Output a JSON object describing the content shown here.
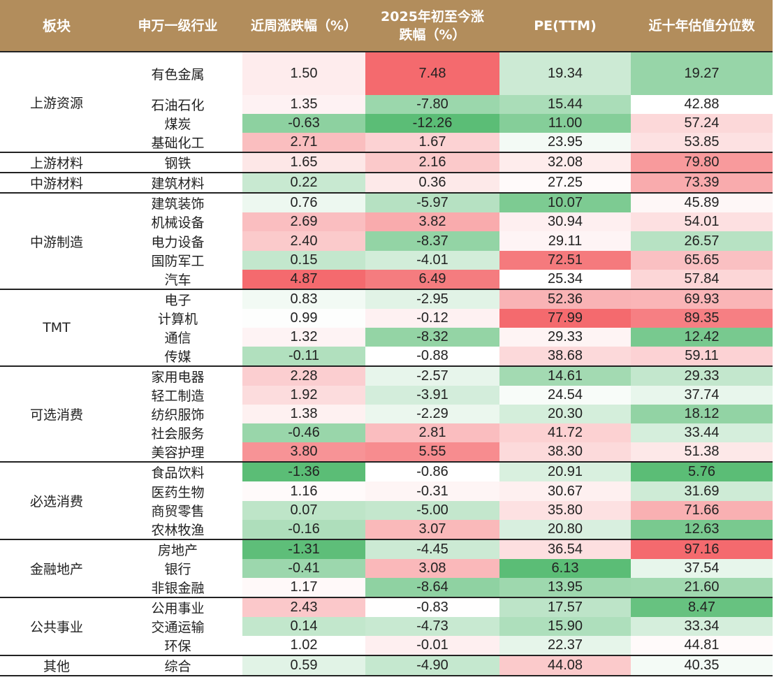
{
  "headers": [
    "板块",
    "申万一级行业",
    "近周涨跌幅（%）",
    "2025年初至今涨跌幅（%）",
    "PE(TTM)",
    "近十年估值分位数"
  ],
  "header_lines": {
    "h3a": "2025年初至今涨",
    "h3b": "跌幅（%）"
  },
  "colors": {
    "header_bg": "#b28d5c",
    "header_text": "#ffffff",
    "positive_max": "#f46a6e",
    "negative_max": "#5bbd76",
    "neutral": "#ffffff"
  },
  "groups": [
    {
      "sector": "上游资源",
      "rows": [
        {
          "industry": "有色金属",
          "week": "1.50",
          "ytd": "7.48",
          "pe": "19.34",
          "pct": "19.27"
        },
        {
          "industry": "石油石化",
          "week": "1.35",
          "ytd": "-7.80",
          "pe": "15.44",
          "pct": "42.88"
        },
        {
          "industry": "煤炭",
          "week": "-0.63",
          "ytd": "-12.26",
          "pe": "11.00",
          "pct": "57.24"
        },
        {
          "industry": "基础化工",
          "week": "2.71",
          "ytd": "1.67",
          "pe": "23.95",
          "pct": "53.85"
        }
      ]
    },
    {
      "sector": "上游材料",
      "rows": [
        {
          "industry": "钢铁",
          "week": "1.65",
          "ytd": "2.16",
          "pe": "32.08",
          "pct": "79.80"
        }
      ]
    },
    {
      "sector": "中游材料",
      "rows": [
        {
          "industry": "建筑材料",
          "week": "0.22",
          "ytd": "0.36",
          "pe": "27.25",
          "pct": "73.39"
        }
      ]
    },
    {
      "sector": "中游制造",
      "rows": [
        {
          "industry": "建筑装饰",
          "week": "0.76",
          "ytd": "-5.97",
          "pe": "10.07",
          "pct": "45.89"
        },
        {
          "industry": "机械设备",
          "week": "2.69",
          "ytd": "3.82",
          "pe": "30.94",
          "pct": "54.01"
        },
        {
          "industry": "电力设备",
          "week": "2.40",
          "ytd": "-8.37",
          "pe": "29.11",
          "pct": "26.57"
        },
        {
          "industry": "国防军工",
          "week": "0.15",
          "ytd": "-4.01",
          "pe": "72.51",
          "pct": "65.65"
        },
        {
          "industry": "汽车",
          "week": "4.87",
          "ytd": "6.49",
          "pe": "25.34",
          "pct": "57.84"
        }
      ]
    },
    {
      "sector": "TMT",
      "rows": [
        {
          "industry": "电子",
          "week": "0.83",
          "ytd": "-2.95",
          "pe": "52.36",
          "pct": "69.93"
        },
        {
          "industry": "计算机",
          "week": "0.99",
          "ytd": "-0.12",
          "pe": "77.99",
          "pct": "89.35"
        },
        {
          "industry": "通信",
          "week": "1.32",
          "ytd": "-8.32",
          "pe": "29.33",
          "pct": "12.42"
        },
        {
          "industry": "传媒",
          "week": "-0.11",
          "ytd": "-0.88",
          "pe": "38.68",
          "pct": "59.11"
        }
      ]
    },
    {
      "sector": "可选消费",
      "rows": [
        {
          "industry": "家用电器",
          "week": "2.28",
          "ytd": "-2.57",
          "pe": "14.61",
          "pct": "29.33"
        },
        {
          "industry": "轻工制造",
          "week": "1.92",
          "ytd": "-3.91",
          "pe": "24.54",
          "pct": "37.74"
        },
        {
          "industry": "纺织服饰",
          "week": "1.38",
          "ytd": "-2.29",
          "pe": "20.30",
          "pct": "18.12"
        },
        {
          "industry": "社会服务",
          "week": "-0.46",
          "ytd": "2.81",
          "pe": "41.72",
          "pct": "33.44"
        },
        {
          "industry": "美容护理",
          "week": "3.80",
          "ytd": "5.55",
          "pe": "38.30",
          "pct": "51.38"
        }
      ]
    },
    {
      "sector": "必选消费",
      "rows": [
        {
          "industry": "食品饮料",
          "week": "-1.36",
          "ytd": "-0.86",
          "pe": "20.91",
          "pct": "5.76"
        },
        {
          "industry": "医药生物",
          "week": "1.16",
          "ytd": "-0.31",
          "pe": "30.67",
          "pct": "31.69"
        },
        {
          "industry": "商贸零售",
          "week": "0.07",
          "ytd": "-5.00",
          "pe": "35.80",
          "pct": "71.66"
        },
        {
          "industry": "农林牧渔",
          "week": "-0.16",
          "ytd": "3.07",
          "pe": "20.80",
          "pct": "12.63"
        }
      ]
    },
    {
      "sector": "金融地产",
      "rows": [
        {
          "industry": "房地产",
          "week": "-1.31",
          "ytd": "-4.45",
          "pe": "36.54",
          "pct": "97.16"
        },
        {
          "industry": "银行",
          "week": "-0.41",
          "ytd": "3.08",
          "pe": "6.13",
          "pct": "37.54"
        },
        {
          "industry": "非银金融",
          "week": "1.17",
          "ytd": "-8.64",
          "pe": "13.95",
          "pct": "21.60"
        }
      ]
    },
    {
      "sector": "公共事业",
      "rows": [
        {
          "industry": "公用事业",
          "week": "2.43",
          "ytd": "-0.83",
          "pe": "17.57",
          "pct": "8.47"
        },
        {
          "industry": "交通运输",
          "week": "0.14",
          "ytd": "-4.73",
          "pe": "15.90",
          "pct": "33.34"
        },
        {
          "industry": "环保",
          "week": "1.02",
          "ytd": "-0.01",
          "pe": "22.37",
          "pct": "44.81"
        }
      ]
    },
    {
      "sector": "其他",
      "rows": [
        {
          "industry": "综合",
          "week": "0.59",
          "ytd": "-4.90",
          "pe": "44.08",
          "pct": "40.35"
        }
      ]
    }
  ]
}
